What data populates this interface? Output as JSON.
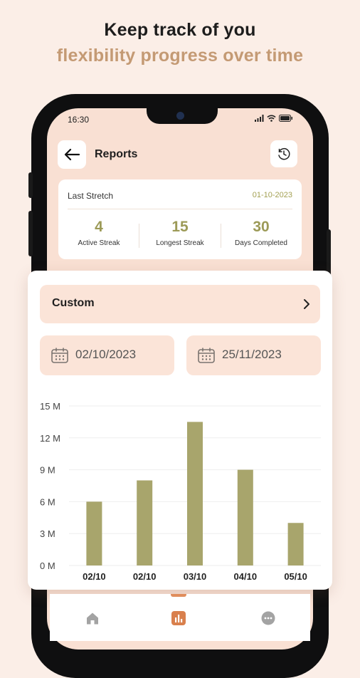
{
  "promo": {
    "line1": "Keep track of you",
    "line2": "flexibility progress over time"
  },
  "status_bar": {
    "time": "16:30"
  },
  "header": {
    "title": "Reports"
  },
  "summary": {
    "last_stretch_label": "Last Stretch",
    "last_stretch_date": "01-10-2023",
    "stats": [
      {
        "value": "4",
        "label": "Active Streak"
      },
      {
        "value": "15",
        "label": "Longest Streak"
      },
      {
        "value": "30",
        "label": "Days Completed"
      }
    ]
  },
  "filter": {
    "range_label": "Custom",
    "start_date": "02/10/2023",
    "end_date": "25/11/2023"
  },
  "chart_data": {
    "type": "bar",
    "categories": [
      "02/10",
      "02/10",
      "03/10",
      "04/10",
      "05/10"
    ],
    "values": [
      6,
      8,
      13.5,
      9,
      4
    ],
    "ylim": [
      0,
      15
    ],
    "yticks": [
      0,
      3,
      6,
      9,
      12,
      15
    ],
    "ytick_labels": [
      "0 M",
      "3 M",
      "6 M",
      "9 M",
      "12 M",
      "15 M"
    ],
    "bar_color": "#a8a56c",
    "grid": true
  },
  "nav": {
    "items": [
      {
        "icon": "home-icon"
      },
      {
        "icon": "chart-icon"
      },
      {
        "icon": "more-icon"
      }
    ],
    "active_color": "#d9804d"
  }
}
